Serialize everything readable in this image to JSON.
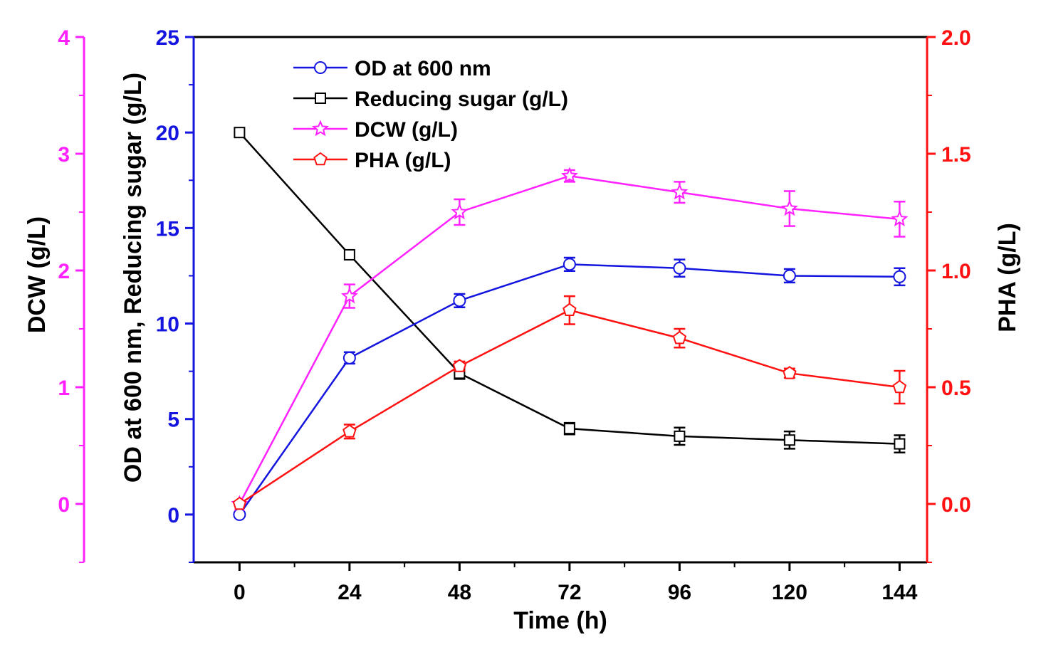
{
  "chart_data": {
    "type": "line",
    "x": [
      0,
      24,
      48,
      72,
      96,
      120,
      144
    ],
    "x_ticks": [
      "0",
      "24",
      "48",
      "72",
      "96",
      "120",
      "144"
    ],
    "xlabel": "Time (h)",
    "xlim": [
      -10,
      150
    ],
    "axes": {
      "left_inner": {
        "label": "OD at 600 nm, Reducing sugar (g/L)",
        "range": [
          -2.5,
          25
        ],
        "ticks": [
          "0",
          "5",
          "10",
          "15",
          "20",
          "25"
        ],
        "color": "#1515e0"
      },
      "left_outer": {
        "label": "DCW (g/L)",
        "range": [
          -0.5,
          4
        ],
        "ticks": [
          "0",
          "1",
          "2",
          "3",
          "4"
        ],
        "color": "#ff22ff"
      },
      "right": {
        "label": "PHA (g/L)",
        "range": [
          -0.25,
          2.0
        ],
        "ticks": [
          "0.0",
          "0.5",
          "1.0",
          "1.5",
          "2.0"
        ],
        "color": "#ff1111"
      }
    },
    "series": [
      {
        "name": "OD at 600 nm",
        "axis": "left_inner",
        "color": "#1515e0",
        "marker": "circle",
        "values": [
          0,
          8.2,
          11.2,
          13.1,
          12.9,
          12.5,
          12.45
        ],
        "errors": [
          0,
          0.3,
          0.35,
          0.35,
          0.45,
          0.35,
          0.45
        ]
      },
      {
        "name": "Reducing sugar (g/L)",
        "axis": "left_inner",
        "color": "#000000",
        "marker": "square",
        "values": [
          20,
          13.6,
          7.4,
          4.5,
          4.1,
          3.9,
          3.7
        ],
        "errors": [
          0,
          0,
          0.3,
          0.3,
          0.45,
          0.45,
          0.45
        ]
      },
      {
        "name": "DCW (g/L)",
        "axis": "left_outer",
        "color": "#ff22ff",
        "marker": "star",
        "values": [
          0,
          1.78,
          2.5,
          2.81,
          2.67,
          2.53,
          2.44
        ],
        "errors": [
          0,
          0.1,
          0.11,
          0.05,
          0.09,
          0.15,
          0.15
        ]
      },
      {
        "name": "PHA (g/L)",
        "axis": "right",
        "color": "#ff1111",
        "marker": "pentagon",
        "values": [
          0,
          0.31,
          0.59,
          0.83,
          0.71,
          0.56,
          0.5
        ],
        "errors": [
          0,
          0.03,
          0.02,
          0.06,
          0.04,
          0.02,
          0.07
        ]
      }
    ],
    "legend": {
      "placement": "top-left",
      "entries": [
        "OD at 600 nm",
        "Reducing sugar (g/L)",
        "DCW (g/L)",
        "PHA (g/L)"
      ]
    }
  }
}
